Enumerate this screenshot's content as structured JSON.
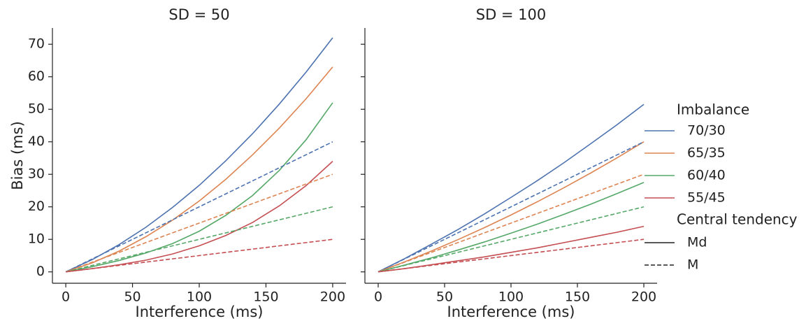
{
  "chart_data": [
    {
      "type": "line",
      "title": "SD = 50",
      "xlabel": "Interference (ms)",
      "ylabel": "Bias (ms)",
      "x": [
        0,
        20,
        40,
        60,
        80,
        100,
        120,
        140,
        160,
        180,
        200
      ],
      "xlim": [
        -10,
        210
      ],
      "xticks": [
        0,
        50,
        100,
        150,
        200
      ],
      "ylim": [
        -3.5,
        75
      ],
      "yticks": [
        0,
        10,
        20,
        30,
        40,
        50,
        60,
        70
      ],
      "ytick_labels": true,
      "series": [
        {
          "imbalance": 0,
          "tendency": 0,
          "values": [
            0,
            3.8,
            8.4,
            13.7,
            19.8,
            26.6,
            34.2,
            42.5,
            51.6,
            61.4,
            72
          ]
        },
        {
          "imbalance": 1,
          "tendency": 0,
          "values": [
            0,
            2.8,
            6.4,
            10.8,
            15.9,
            21.8,
            28.5,
            36.0,
            44.2,
            53.2,
            63
          ]
        },
        {
          "imbalance": 2,
          "tendency": 0,
          "values": [
            0,
            1.6,
            3.5,
            5.8,
            8.7,
            12.5,
            17.4,
            23.5,
            31.2,
            40.6,
            52
          ]
        },
        {
          "imbalance": 3,
          "tendency": 0,
          "values": [
            0,
            1.0,
            2.2,
            3.6,
            5.5,
            8,
            11.2,
            15.2,
            20.3,
            26.5,
            34
          ]
        },
        {
          "imbalance": 0,
          "tendency": 1,
          "values": [
            0,
            4,
            8,
            12,
            16,
            20,
            24,
            28,
            32,
            36,
            40
          ]
        },
        {
          "imbalance": 1,
          "tendency": 1,
          "values": [
            0,
            3,
            6,
            9,
            12,
            15,
            18,
            21,
            24,
            27,
            30
          ]
        },
        {
          "imbalance": 2,
          "tendency": 1,
          "values": [
            0,
            2,
            4,
            6,
            8,
            10,
            12,
            14,
            16,
            18,
            20
          ]
        },
        {
          "imbalance": 3,
          "tendency": 1,
          "values": [
            0,
            1,
            2,
            3,
            4,
            5,
            6,
            7,
            8,
            9,
            10
          ]
        }
      ]
    },
    {
      "type": "line",
      "title": "SD = 100",
      "xlabel": "Interference (ms)",
      "x": [
        0,
        20,
        40,
        60,
        80,
        100,
        120,
        140,
        160,
        180,
        200
      ],
      "xlim": [
        -10,
        210
      ],
      "xticks": [
        0,
        50,
        100,
        150,
        200
      ],
      "ylim": [
        -3.5,
        75
      ],
      "yticks": [
        0,
        10,
        20,
        30,
        40,
        50,
        60,
        70
      ],
      "ytick_labels": false,
      "series": [
        {
          "imbalance": 0,
          "tendency": 0,
          "values": [
            0,
            4.1,
            8.5,
            13.0,
            17.8,
            22.9,
            28.1,
            33.6,
            39.4,
            45.3,
            51.5
          ]
        },
        {
          "imbalance": 1,
          "tendency": 0,
          "values": [
            0,
            3.1,
            6.4,
            9.9,
            13.6,
            17.5,
            21.6,
            25.9,
            30.4,
            35.1,
            40
          ]
        },
        {
          "imbalance": 2,
          "tendency": 0,
          "values": [
            0,
            2.1,
            4.3,
            6.7,
            9.2,
            11.9,
            14.7,
            17.7,
            20.8,
            24.1,
            27.5
          ]
        },
        {
          "imbalance": 3,
          "tendency": 0,
          "values": [
            0,
            1.0,
            2.2,
            3.4,
            4.6,
            6.0,
            7.4,
            9.0,
            10.6,
            12.2,
            14
          ]
        },
        {
          "imbalance": 0,
          "tendency": 1,
          "values": [
            0,
            4,
            8,
            12,
            16,
            20,
            24,
            28,
            32,
            36,
            40
          ]
        },
        {
          "imbalance": 1,
          "tendency": 1,
          "values": [
            0,
            3,
            6,
            9,
            12,
            15,
            18,
            21,
            24,
            27,
            30
          ]
        },
        {
          "imbalance": 2,
          "tendency": 1,
          "values": [
            0,
            2,
            4,
            6,
            8,
            10,
            12,
            14,
            16,
            18,
            20
          ]
        },
        {
          "imbalance": 3,
          "tendency": 1,
          "values": [
            0,
            1,
            2,
            3,
            4,
            5,
            6,
            7,
            8,
            9,
            10
          ]
        }
      ]
    }
  ],
  "legend": {
    "imbalance_title": "Imbalance",
    "imbalance": [
      {
        "name": "70/30",
        "color": "#4c72b0"
      },
      {
        "name": "65/35",
        "color": "#dd8452"
      },
      {
        "name": "60/40",
        "color": "#55a868"
      },
      {
        "name": "55/45",
        "color": "#c44e52"
      }
    ],
    "tendency_title": "Central tendency",
    "tendency": [
      {
        "name": "Md",
        "dash": "none"
      },
      {
        "name": "M",
        "dash": "6 3"
      }
    ]
  }
}
